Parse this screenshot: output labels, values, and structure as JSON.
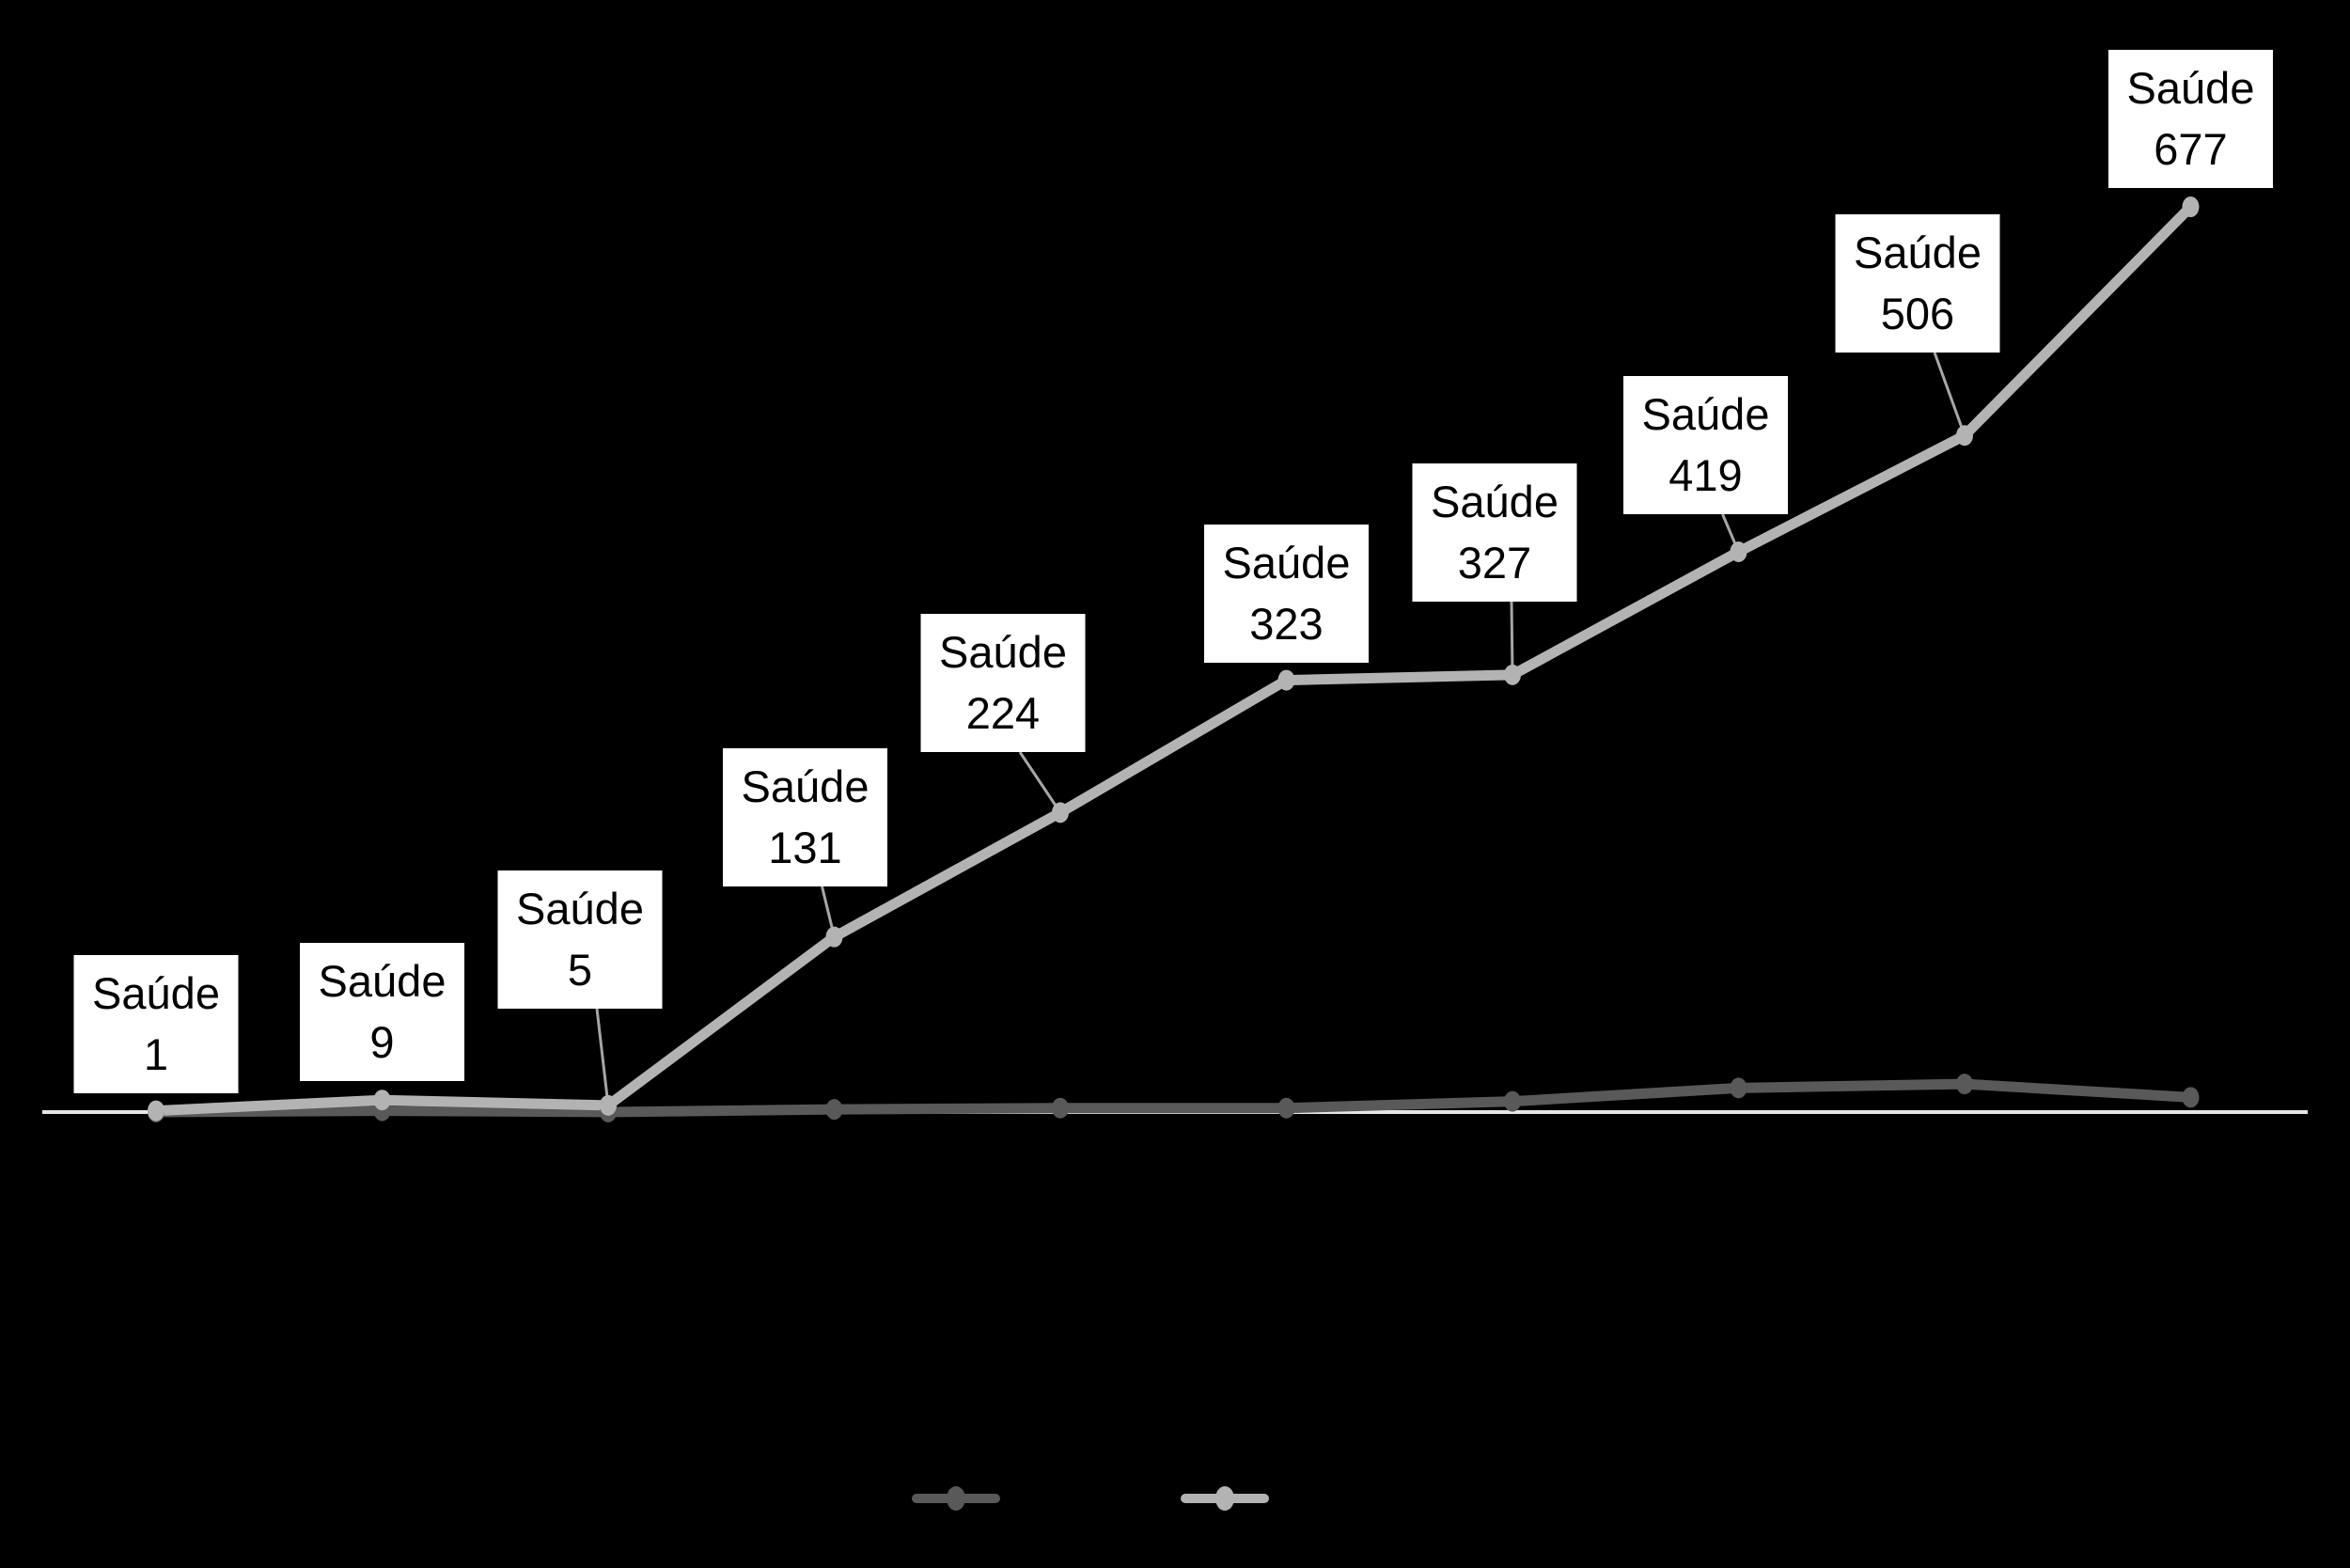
{
  "chart_data": {
    "type": "line",
    "title": "",
    "x": [
      1,
      2,
      3,
      4,
      5,
      6,
      7,
      8,
      9,
      10
    ],
    "series": [
      {
        "name": "",
        "color": "#595959",
        "values": [
          0,
          1,
          0,
          2,
          3,
          3,
          8,
          18,
          21,
          11
        ],
        "values_are_estimates": true,
        "data_labels": []
      },
      {
        "name": "Saúde",
        "color": "#B3B3B3",
        "values": [
          1,
          9,
          5,
          131,
          224,
          323,
          327,
          419,
          506,
          677
        ],
        "data_labels": [
          "Saúde 1",
          "Saúde 9",
          "Saúde 5",
          "Saúde 131",
          "Saúde 224",
          "Saúde 323",
          "Saúde 327",
          "Saúde 419",
          "Saúde 506",
          "Saúde 677"
        ]
      }
    ],
    "ylim": [
      0,
      700
    ],
    "grid": false,
    "axis_line_visible": true,
    "tick_labels_visible": false,
    "legend_position": "bottom-center",
    "legend_labels_visible": false
  },
  "data_labels": {
    "bg": "#FFFFFF",
    "text_color": "#000000",
    "items": [
      {
        "line1": "Saúde",
        "line2": "1"
      },
      {
        "line1": "Saúde",
        "line2": "9"
      },
      {
        "line1": "Saúde",
        "line2": "5"
      },
      {
        "line1": "Saúde",
        "line2": "131"
      },
      {
        "line1": "Saúde",
        "line2": "224"
      },
      {
        "line1": "Saúde",
        "line2": "323"
      },
      {
        "line1": "Saúde",
        "line2": "327"
      },
      {
        "line1": "Saúde",
        "line2": "419"
      },
      {
        "line1": "Saúde",
        "line2": "506"
      },
      {
        "line1": "Saúde",
        "line2": "677"
      }
    ]
  },
  "legend": {
    "items": [
      {
        "key": "dark-series",
        "color": "#595959"
      },
      {
        "key": "light-series",
        "color": "#B3B3B3"
      }
    ]
  },
  "colors": {
    "background": "#000000",
    "axis_line": "#E6E6E6",
    "leader_line": "#A6A6A6",
    "series_dark": "#595959",
    "series_light": "#B3B3B3",
    "label_bg": "#FFFFFF",
    "label_text": "#000000"
  }
}
